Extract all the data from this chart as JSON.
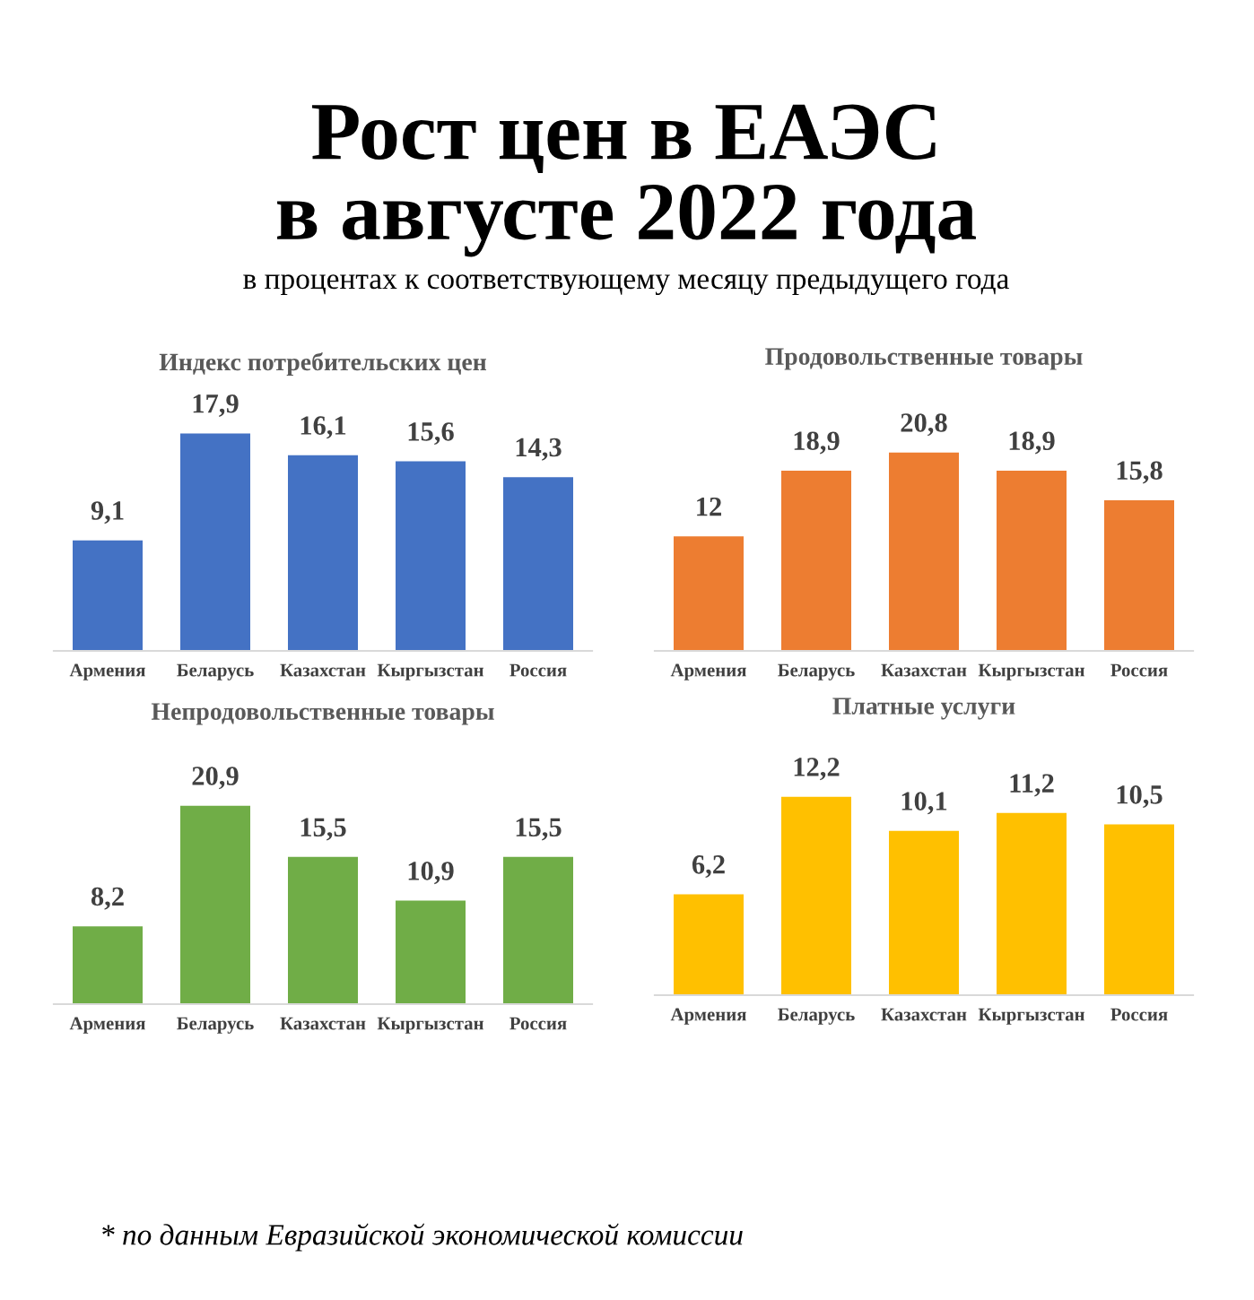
{
  "chart_data": [
    {
      "type": "bar",
      "title": "Индекс потребительских цен",
      "categories": [
        "Армения",
        "Беларусь",
        "Казахстан",
        "Кыргызстан",
        "Россия"
      ],
      "values": [
        9.1,
        17.9,
        16.1,
        15.6,
        14.3
      ],
      "value_labels": [
        "9,1",
        "17,9",
        "16,1",
        "15,6",
        "14,3"
      ],
      "color": "#4472c4",
      "tick_labels": "x",
      "grid": false,
      "annotations": [
        "Рост цен в ЕАЭС\nв августе 2022 года",
        "в процентах к соответствующему месяцу предыдущего года"
      ]
    },
    {
      "type": "bar",
      "title": "Продовольственные товары",
      "categories": [
        "Армения",
        "Беларусь",
        "Казахстан",
        "Кыргызстан",
        "Россия"
      ],
      "values": [
        12,
        18.9,
        20.8,
        18.9,
        15.8
      ],
      "value_labels": [
        "12",
        "18,9",
        "20,8",
        "18,9",
        "15,8"
      ],
      "color": "#ed7d31",
      "tick_labels": "x",
      "grid": false
    },
    {
      "type": "bar",
      "title": "Непродовольственные товары",
      "categories": [
        "Армения",
        "Беларусь",
        "Казахстан",
        "Кыргызстан",
        "Россия"
      ],
      "values": [
        8.2,
        20.9,
        15.5,
        10.9,
        15.5
      ],
      "value_labels": [
        "8,2",
        "20,9",
        "15,5",
        "10,9",
        "15,5"
      ],
      "color": "#70ad47",
      "tick_labels": "x",
      "grid": false
    },
    {
      "type": "bar",
      "title": "Платные услуги",
      "categories": [
        "Армения",
        "Беларусь",
        "Казахстан",
        "Кыргызстан",
        "Россия"
      ],
      "values": [
        6.2,
        12.2,
        10.1,
        11.2,
        10.5
      ],
      "value_labels": [
        "6,2",
        "12,2",
        "10,1",
        "11,2",
        "10,5"
      ],
      "color": "#ffc000",
      "tick_labels": "x",
      "grid": false,
      "annotations": [
        "* по данным Евразийской экономической комиссии"
      ]
    }
  ]
}
